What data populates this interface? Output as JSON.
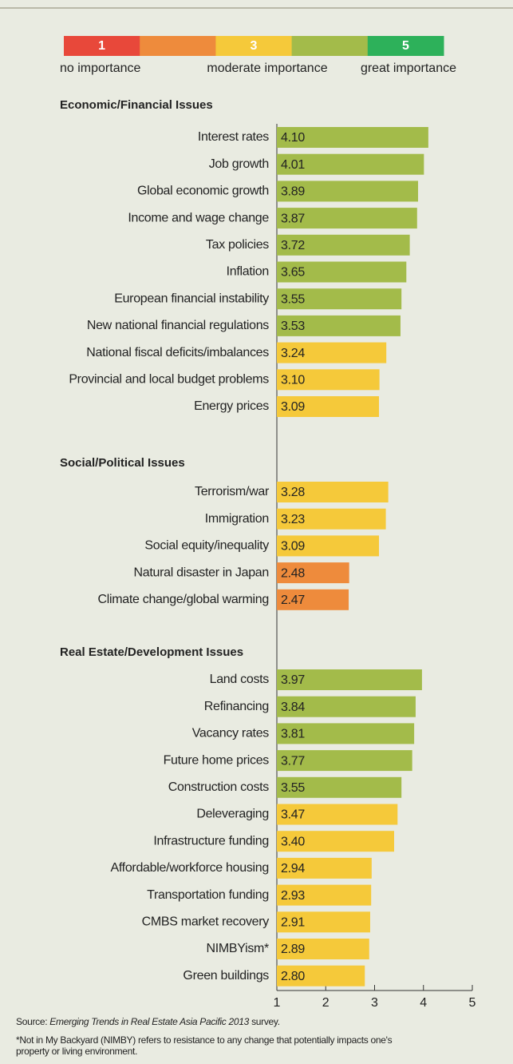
{
  "chart_data": {
    "type": "bar",
    "legend": {
      "colors": [
        "#e8483a",
        "#ee8b3c",
        "#f5c93a",
        "#a3bb4a",
        "#2db15a"
      ],
      "numbers": [
        1,
        3,
        5
      ],
      "texts": [
        "no importance",
        "moderate importance",
        "great importance"
      ]
    },
    "groups": [
      {
        "title": "Economic/Financial Issues",
        "categories": [
          "Interest rates",
          "Job growth",
          "Global economic growth",
          "Income and wage change",
          "Tax policies",
          "Inflation",
          "European financial instability",
          "New national financial regulations",
          "National fiscal deficits/imbalances",
          "Provincial and local budget problems",
          "Energy prices"
        ],
        "values": [
          4.1,
          4.01,
          3.89,
          3.87,
          3.72,
          3.65,
          3.55,
          3.53,
          3.24,
          3.1,
          3.09
        ],
        "value_labels": [
          "4.10",
          "4.01",
          "3.89",
          "3.87",
          "3.72",
          "3.65",
          "3.55",
          "3.53",
          "3.24",
          "3.10",
          "3.09"
        ],
        "colors": [
          "#a3bb4a",
          "#a3bb4a",
          "#a3bb4a",
          "#a3bb4a",
          "#a3bb4a",
          "#a3bb4a",
          "#a3bb4a",
          "#a3bb4a",
          "#f5c93a",
          "#f5c93a",
          "#f5c93a"
        ]
      },
      {
        "title": "Social/Political Issues",
        "categories": [
          "Terrorism/war",
          "Immigration",
          "Social equity/inequality",
          "Natural disaster in Japan",
          "Climate change/global warming"
        ],
        "values": [
          3.28,
          3.23,
          3.09,
          2.48,
          2.47
        ],
        "value_labels": [
          "3.28",
          "3.23",
          "3.09",
          "2.48",
          "2.47"
        ],
        "colors": [
          "#f5c93a",
          "#f5c93a",
          "#f5c93a",
          "#ee8b3c",
          "#ee8b3c"
        ]
      },
      {
        "title": "Real Estate/Development Issues",
        "categories": [
          "Land costs",
          "Refinancing",
          "Vacancy rates",
          "Future home prices",
          "Construction costs",
          "Deleveraging",
          "Infrastructure funding",
          "Affordable/workforce housing",
          "Transportation funding",
          "CMBS market recovery",
          "NIMBYism*",
          "Green buildings"
        ],
        "values": [
          3.97,
          3.84,
          3.81,
          3.77,
          3.55,
          3.47,
          3.4,
          2.94,
          2.93,
          2.91,
          2.89,
          2.8
        ],
        "value_labels": [
          "3.97",
          "3.84",
          "3.81",
          "3.77",
          "3.55",
          "3.47",
          "3.40",
          "2.94",
          "2.93",
          "2.91",
          "2.89",
          "2.80"
        ],
        "colors": [
          "#a3bb4a",
          "#a3bb4a",
          "#a3bb4a",
          "#a3bb4a",
          "#a3bb4a",
          "#f5c93a",
          "#f5c93a",
          "#f5c93a",
          "#f5c93a",
          "#f5c93a",
          "#f5c93a",
          "#f5c93a"
        ]
      }
    ],
    "xlim": [
      1,
      5
    ],
    "xticks": [
      1,
      2,
      3,
      4,
      5
    ],
    "source": [
      "Source: ",
      "Emerging Trends in Real Estate Asia Pacific 2013",
      " survey."
    ],
    "footnote": [
      "*Not in My Backyard (NIMBY) refers to resistance to any change that potentially impacts one's",
      "property or living environment."
    ]
  }
}
